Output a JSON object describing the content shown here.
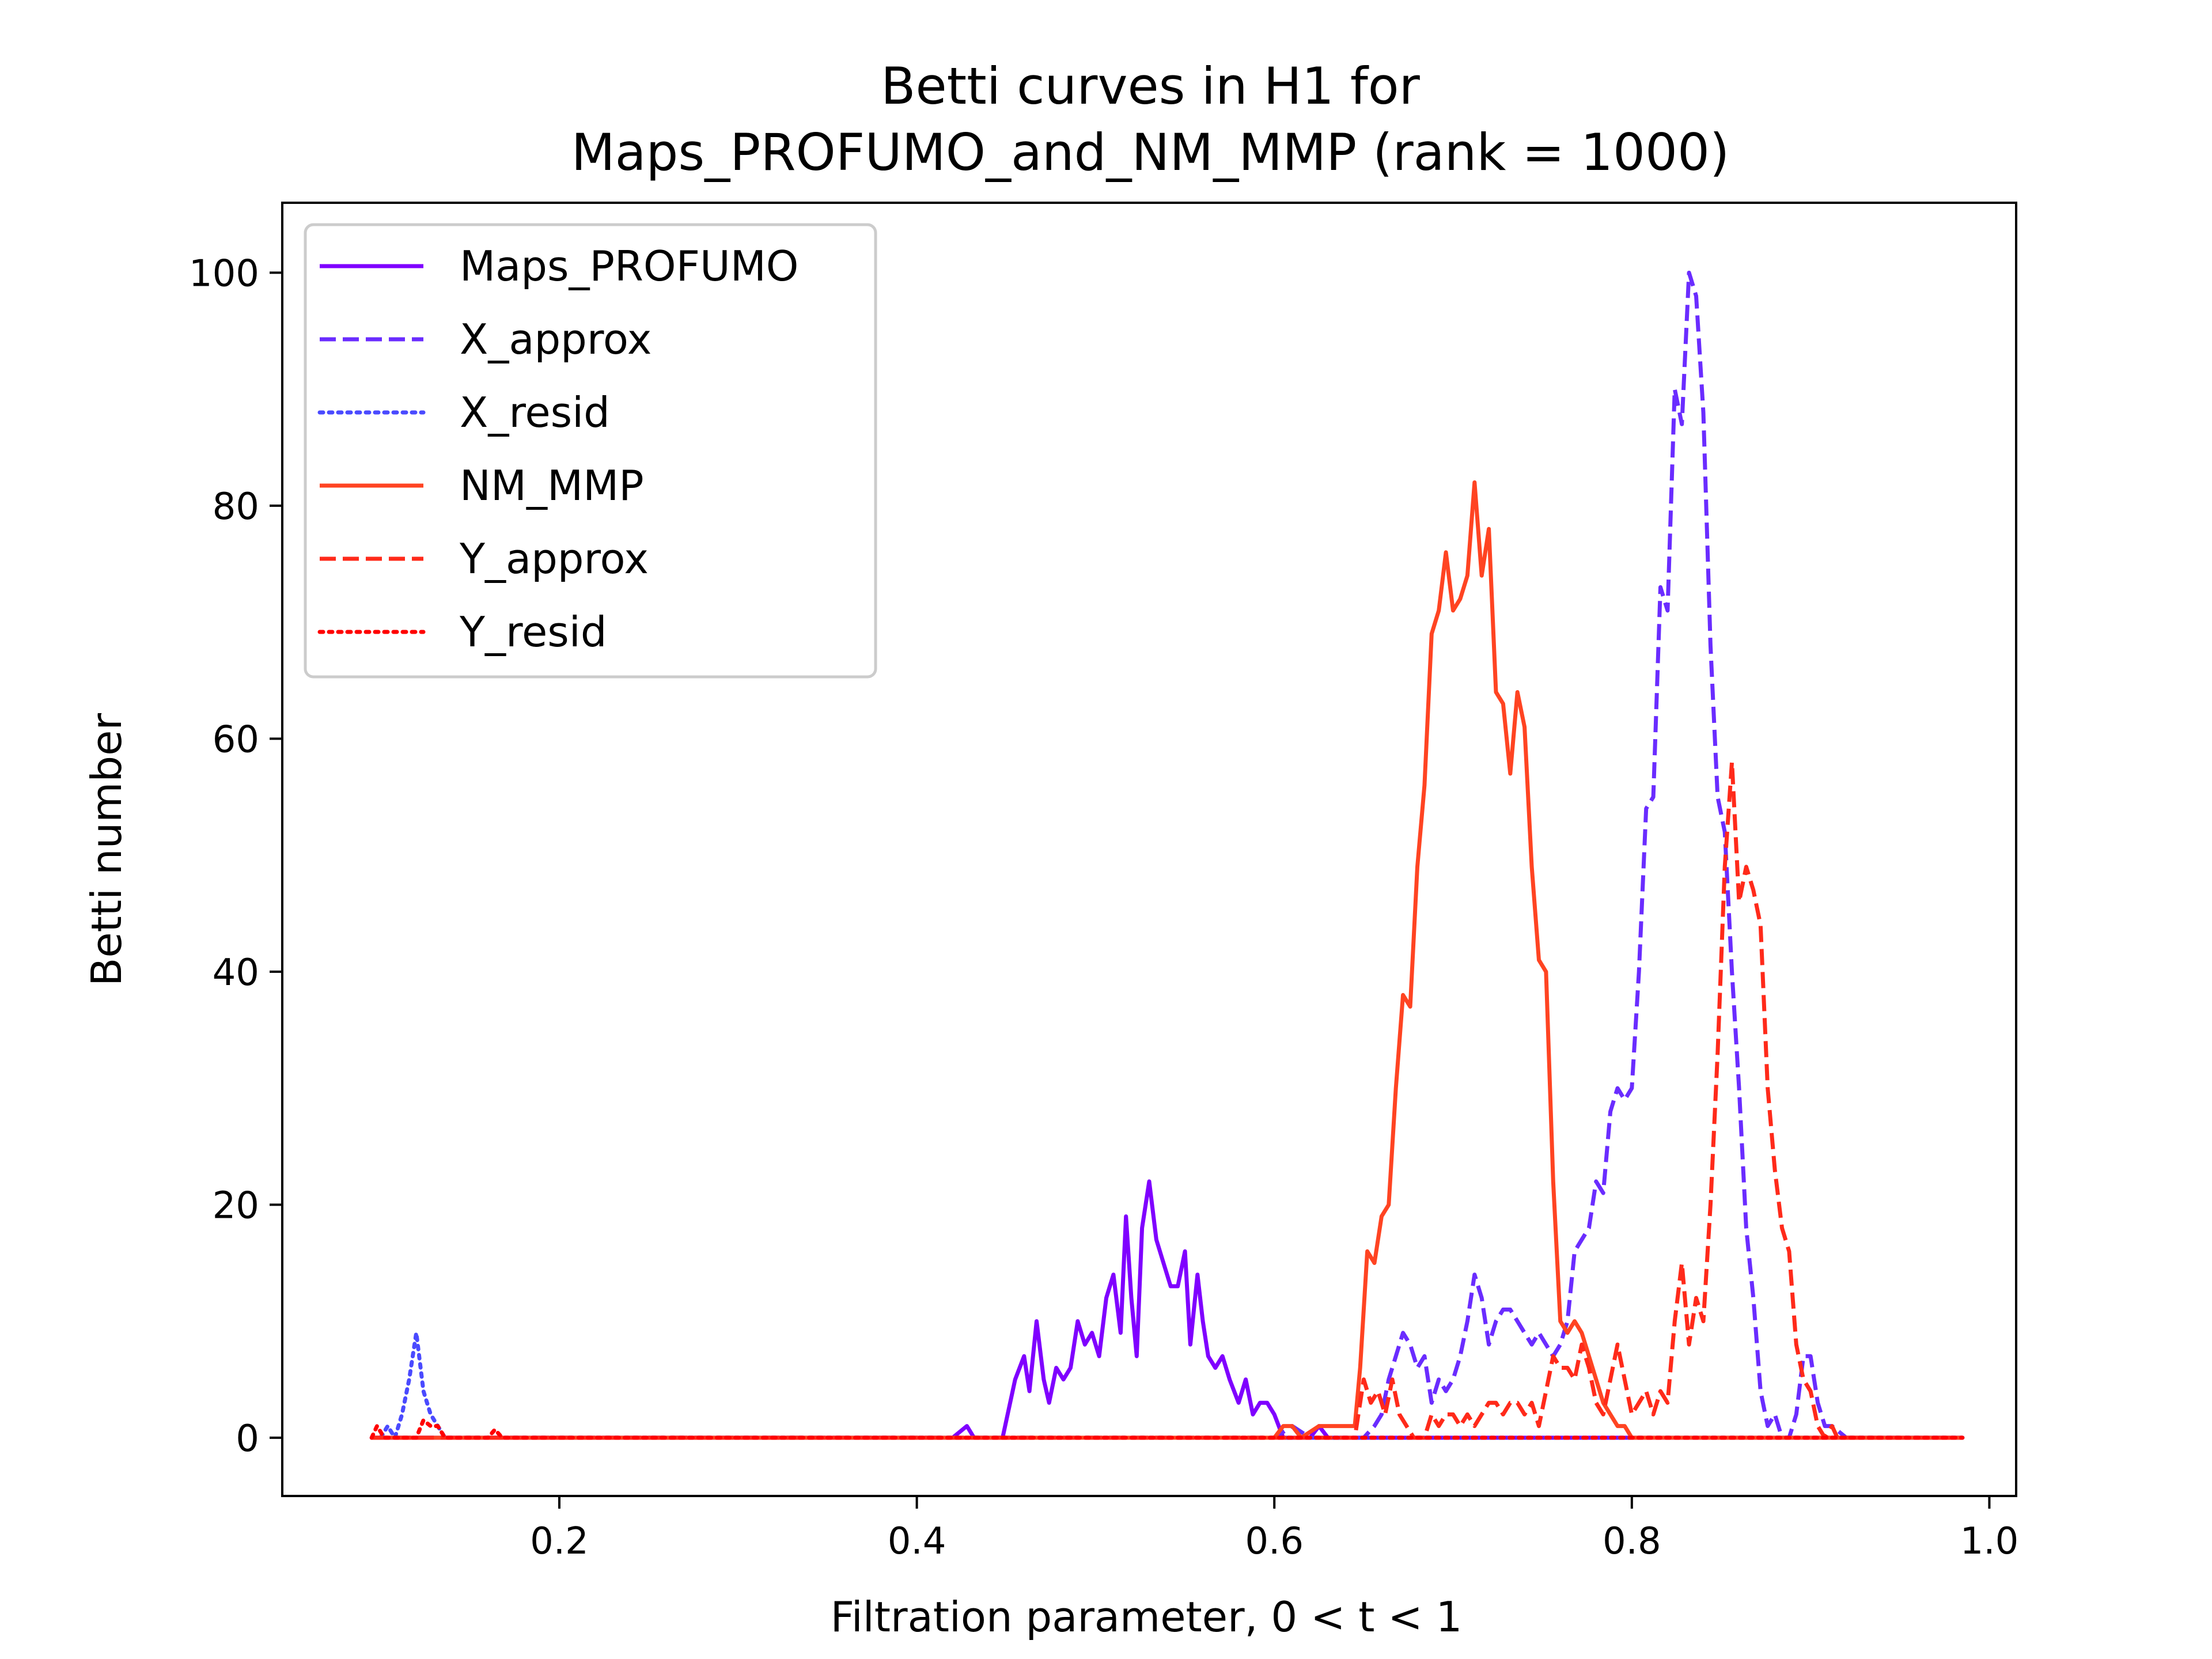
{
  "chart_data": {
    "type": "line",
    "title_lines": [
      "Betti curves in H1 for",
      "Maps_PROFUMO_and_NM_MMP (rank = 1000)"
    ],
    "xlabel": "Filtration parameter, 0 < t < 1",
    "ylabel": "Betti number",
    "xlim": [
      0.045,
      1.015
    ],
    "ylim": [
      -5,
      106
    ],
    "xticks": [
      0.2,
      0.4,
      0.6,
      0.8,
      1.0
    ],
    "xtick_labels": [
      "0.2",
      "0.4",
      "0.6",
      "0.8",
      "1.0"
    ],
    "yticks": [
      0,
      20,
      40,
      60,
      80,
      100
    ],
    "ytick_labels": [
      "0",
      "20",
      "40",
      "60",
      "80",
      "100"
    ],
    "grid": false,
    "legend_position": "top-left",
    "series": [
      {
        "name": "Maps_PROFUMO",
        "color": "#7f00ff",
        "dash": "solid",
        "points": [
          [
            0.095,
            0
          ],
          [
            0.42,
            0
          ],
          [
            0.428,
            1
          ],
          [
            0.432,
            0
          ],
          [
            0.448,
            0
          ],
          [
            0.455,
            5
          ],
          [
            0.46,
            7
          ],
          [
            0.463,
            4
          ],
          [
            0.467,
            10
          ],
          [
            0.471,
            5
          ],
          [
            0.474,
            3
          ],
          [
            0.478,
            6
          ],
          [
            0.482,
            5
          ],
          [
            0.486,
            6
          ],
          [
            0.49,
            10
          ],
          [
            0.494,
            8
          ],
          [
            0.498,
            9
          ],
          [
            0.502,
            7
          ],
          [
            0.506,
            12
          ],
          [
            0.51,
            14
          ],
          [
            0.514,
            9
          ],
          [
            0.517,
            19
          ],
          [
            0.52,
            12
          ],
          [
            0.523,
            7
          ],
          [
            0.526,
            18
          ],
          [
            0.53,
            22
          ],
          [
            0.534,
            17
          ],
          [
            0.538,
            15
          ],
          [
            0.542,
            13
          ],
          [
            0.546,
            13
          ],
          [
            0.55,
            16
          ],
          [
            0.553,
            8
          ],
          [
            0.557,
            14
          ],
          [
            0.56,
            10
          ],
          [
            0.563,
            7
          ],
          [
            0.567,
            6
          ],
          [
            0.571,
            7
          ],
          [
            0.575,
            5
          ],
          [
            0.58,
            3
          ],
          [
            0.584,
            5
          ],
          [
            0.588,
            2
          ],
          [
            0.592,
            3
          ],
          [
            0.596,
            3
          ],
          [
            0.6,
            2
          ],
          [
            0.605,
            0
          ],
          [
            0.62,
            0
          ],
          [
            0.625,
            1
          ],
          [
            0.63,
            0
          ],
          [
            0.985,
            0
          ]
        ]
      },
      {
        "name": "X_approx",
        "color": "#6a2cff",
        "dash": "dashed",
        "points": [
          [
            0.095,
            0
          ],
          [
            0.6,
            0
          ],
          [
            0.61,
            1
          ],
          [
            0.62,
            0
          ],
          [
            0.65,
            0
          ],
          [
            0.656,
            1
          ],
          [
            0.66,
            2
          ],
          [
            0.664,
            5
          ],
          [
            0.668,
            7
          ],
          [
            0.672,
            9
          ],
          [
            0.676,
            8
          ],
          [
            0.68,
            6
          ],
          [
            0.684,
            7
          ],
          [
            0.688,
            3
          ],
          [
            0.692,
            5
          ],
          [
            0.696,
            4
          ],
          [
            0.7,
            5
          ],
          [
            0.704,
            7
          ],
          [
            0.708,
            10
          ],
          [
            0.712,
            14
          ],
          [
            0.716,
            12
          ],
          [
            0.72,
            8
          ],
          [
            0.724,
            10
          ],
          [
            0.728,
            11
          ],
          [
            0.732,
            11
          ],
          [
            0.736,
            10
          ],
          [
            0.74,
            9
          ],
          [
            0.744,
            8
          ],
          [
            0.748,
            9
          ],
          [
            0.752,
            8
          ],
          [
            0.756,
            7
          ],
          [
            0.76,
            8
          ],
          [
            0.764,
            10
          ],
          [
            0.768,
            16
          ],
          [
            0.772,
            17
          ],
          [
            0.776,
            18
          ],
          [
            0.78,
            22
          ],
          [
            0.784,
            21
          ],
          [
            0.788,
            28
          ],
          [
            0.792,
            30
          ],
          [
            0.796,
            29
          ],
          [
            0.8,
            30
          ],
          [
            0.804,
            40
          ],
          [
            0.808,
            54
          ],
          [
            0.812,
            55
          ],
          [
            0.816,
            73
          ],
          [
            0.82,
            71
          ],
          [
            0.824,
            90
          ],
          [
            0.828,
            87
          ],
          [
            0.832,
            100
          ],
          [
            0.836,
            98
          ],
          [
            0.84,
            88
          ],
          [
            0.844,
            68
          ],
          [
            0.848,
            55
          ],
          [
            0.852,
            52
          ],
          [
            0.856,
            40
          ],
          [
            0.86,
            30
          ],
          [
            0.864,
            18
          ],
          [
            0.868,
            12
          ],
          [
            0.872,
            4
          ],
          [
            0.876,
            1
          ],
          [
            0.88,
            2
          ],
          [
            0.884,
            0
          ],
          [
            0.888,
            0
          ],
          [
            0.892,
            2
          ],
          [
            0.896,
            7
          ],
          [
            0.9,
            7
          ],
          [
            0.904,
            3
          ],
          [
            0.908,
            1
          ],
          [
            0.912,
            1
          ],
          [
            0.92,
            0
          ],
          [
            0.985,
            0
          ]
        ]
      },
      {
        "name": "X_resid",
        "color": "#4a4aff",
        "dash": "dotted",
        "points": [
          [
            0.095,
            0
          ],
          [
            0.1,
            0
          ],
          [
            0.104,
            1
          ],
          [
            0.108,
            0
          ],
          [
            0.112,
            2
          ],
          [
            0.116,
            5
          ],
          [
            0.12,
            9
          ],
          [
            0.124,
            4
          ],
          [
            0.128,
            2
          ],
          [
            0.132,
            1
          ],
          [
            0.136,
            0
          ],
          [
            0.985,
            0
          ]
        ]
      },
      {
        "name": "NM_MMP",
        "color": "#ff4422",
        "dash": "solid",
        "points": [
          [
            0.095,
            0
          ],
          [
            0.6,
            0
          ],
          [
            0.605,
            1
          ],
          [
            0.61,
            1
          ],
          [
            0.615,
            0
          ],
          [
            0.625,
            1
          ],
          [
            0.63,
            1
          ],
          [
            0.64,
            1
          ],
          [
            0.645,
            1
          ],
          [
            0.648,
            6
          ],
          [
            0.652,
            16
          ],
          [
            0.656,
            15
          ],
          [
            0.66,
            19
          ],
          [
            0.664,
            20
          ],
          [
            0.668,
            30
          ],
          [
            0.672,
            38
          ],
          [
            0.676,
            37
          ],
          [
            0.68,
            49
          ],
          [
            0.684,
            56
          ],
          [
            0.688,
            69
          ],
          [
            0.692,
            71
          ],
          [
            0.696,
            76
          ],
          [
            0.7,
            71
          ],
          [
            0.704,
            72
          ],
          [
            0.708,
            74
          ],
          [
            0.712,
            82
          ],
          [
            0.716,
            74
          ],
          [
            0.72,
            78
          ],
          [
            0.724,
            64
          ],
          [
            0.728,
            63
          ],
          [
            0.732,
            57
          ],
          [
            0.736,
            64
          ],
          [
            0.74,
            61
          ],
          [
            0.744,
            49
          ],
          [
            0.748,
            41
          ],
          [
            0.752,
            40
          ],
          [
            0.756,
            22
          ],
          [
            0.76,
            10
          ],
          [
            0.764,
            9
          ],
          [
            0.768,
            10
          ],
          [
            0.772,
            9
          ],
          [
            0.776,
            7
          ],
          [
            0.78,
            5
          ],
          [
            0.784,
            3
          ],
          [
            0.788,
            2
          ],
          [
            0.792,
            1
          ],
          [
            0.796,
            1
          ],
          [
            0.8,
            0
          ],
          [
            0.985,
            0
          ]
        ]
      },
      {
        "name": "Y_approx",
        "color": "#ff2a1a",
        "dash": "dashed",
        "points": [
          [
            0.095,
            0
          ],
          [
            0.645,
            0
          ],
          [
            0.65,
            5
          ],
          [
            0.654,
            3
          ],
          [
            0.658,
            4
          ],
          [
            0.662,
            2
          ],
          [
            0.666,
            5
          ],
          [
            0.67,
            2
          ],
          [
            0.674,
            1
          ],
          [
            0.678,
            0
          ],
          [
            0.684,
            0
          ],
          [
            0.688,
            2
          ],
          [
            0.692,
            1
          ],
          [
            0.696,
            2
          ],
          [
            0.7,
            2
          ],
          [
            0.704,
            1
          ],
          [
            0.708,
            2
          ],
          [
            0.712,
            1
          ],
          [
            0.716,
            2
          ],
          [
            0.72,
            3
          ],
          [
            0.724,
            3
          ],
          [
            0.728,
            2
          ],
          [
            0.732,
            3
          ],
          [
            0.736,
            3
          ],
          [
            0.74,
            2
          ],
          [
            0.744,
            3
          ],
          [
            0.748,
            1
          ],
          [
            0.752,
            4
          ],
          [
            0.756,
            7
          ],
          [
            0.76,
            6
          ],
          [
            0.764,
            6
          ],
          [
            0.768,
            5
          ],
          [
            0.772,
            8
          ],
          [
            0.776,
            6
          ],
          [
            0.78,
            3
          ],
          [
            0.784,
            2
          ],
          [
            0.788,
            5
          ],
          [
            0.792,
            8
          ],
          [
            0.796,
            5
          ],
          [
            0.8,
            2
          ],
          [
            0.804,
            3
          ],
          [
            0.808,
            4
          ],
          [
            0.812,
            2
          ],
          [
            0.816,
            4
          ],
          [
            0.82,
            3
          ],
          [
            0.824,
            10
          ],
          [
            0.828,
            15
          ],
          [
            0.832,
            8
          ],
          [
            0.836,
            12
          ],
          [
            0.84,
            10
          ],
          [
            0.844,
            20
          ],
          [
            0.848,
            33
          ],
          [
            0.852,
            49
          ],
          [
            0.856,
            58
          ],
          [
            0.86,
            46
          ],
          [
            0.864,
            49
          ],
          [
            0.868,
            47
          ],
          [
            0.872,
            44
          ],
          [
            0.876,
            30
          ],
          [
            0.88,
            23
          ],
          [
            0.884,
            18
          ],
          [
            0.888,
            16
          ],
          [
            0.892,
            8
          ],
          [
            0.896,
            5
          ],
          [
            0.9,
            4
          ],
          [
            0.904,
            1
          ],
          [
            0.908,
            0
          ],
          [
            0.912,
            1
          ],
          [
            0.915,
            0
          ],
          [
            0.985,
            0
          ]
        ]
      },
      {
        "name": "Y_resid",
        "color": "#ff0000",
        "dash": "dotted",
        "points": [
          [
            0.095,
            0
          ],
          [
            0.098,
            1
          ],
          [
            0.102,
            0
          ],
          [
            0.12,
            0
          ],
          [
            0.124,
            1.5
          ],
          [
            0.128,
            1
          ],
          [
            0.132,
            1
          ],
          [
            0.136,
            0
          ],
          [
            0.16,
            0
          ],
          [
            0.164,
            0.7
          ],
          [
            0.168,
            0
          ],
          [
            0.985,
            0
          ]
        ]
      }
    ]
  }
}
